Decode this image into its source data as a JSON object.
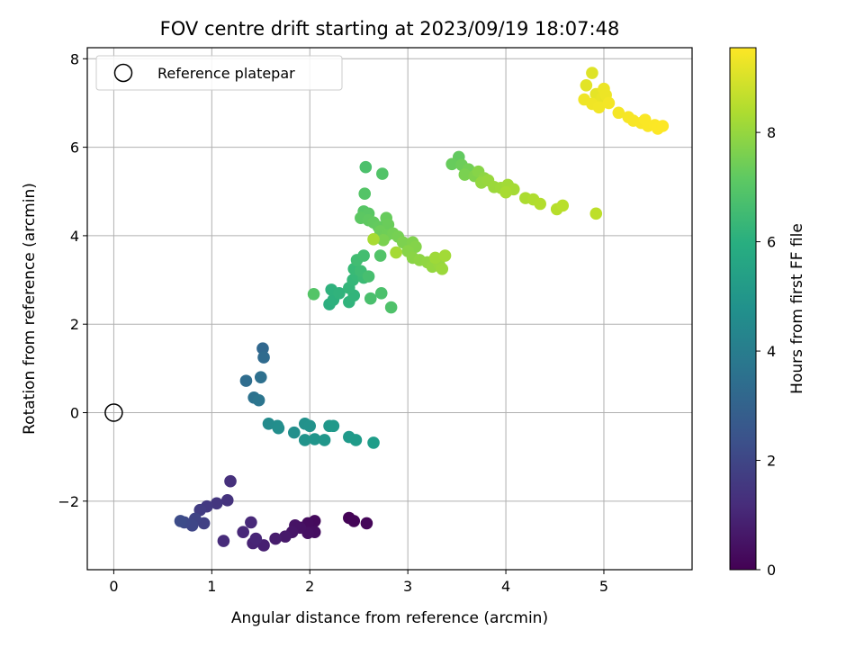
{
  "chart_data": {
    "type": "scatter",
    "title": "FOV centre drift starting at 2023/09/19 18:07:48",
    "xlabel": "Angular distance from reference (arcmin)",
    "ylabel": "Rotation from reference (arcmin)",
    "xlim": [
      -0.27,
      5.9
    ],
    "ylim": [
      -3.55,
      8.25
    ],
    "xticks": [
      0,
      1,
      2,
      3,
      4,
      5
    ],
    "yticks": [
      -2,
      0,
      2,
      4,
      6,
      8
    ],
    "grid": true,
    "legend": {
      "placement": "top-left",
      "entries": [
        "Reference platepar"
      ]
    },
    "reference_point": {
      "x": 0,
      "y": 0
    },
    "colorbar": {
      "label": "Hours from first FF file",
      "colormap": "viridis",
      "range": [
        0,
        9.55
      ],
      "ticks": [
        0,
        2,
        4,
        6,
        8
      ]
    },
    "points": [
      {
        "x": 2.4,
        "y": -2.38,
        "c": 0.05
      },
      {
        "x": 2.45,
        "y": -2.45,
        "c": 0.1
      },
      {
        "x": 2.58,
        "y": -2.5,
        "c": 0.15
      },
      {
        "x": 2.05,
        "y": -2.45,
        "c": 0.25
      },
      {
        "x": 1.98,
        "y": -2.5,
        "c": 0.3
      },
      {
        "x": 2.05,
        "y": -2.7,
        "c": 0.35
      },
      {
        "x": 1.98,
        "y": -2.72,
        "c": 0.4
      },
      {
        "x": 1.9,
        "y": -2.6,
        "c": 0.45
      },
      {
        "x": 1.85,
        "y": -2.55,
        "c": 0.5
      },
      {
        "x": 1.82,
        "y": -2.7,
        "c": 0.55
      },
      {
        "x": 1.75,
        "y": -2.8,
        "c": 0.65
      },
      {
        "x": 1.65,
        "y": -2.85,
        "c": 0.75
      },
      {
        "x": 1.53,
        "y": -3.0,
        "c": 0.85
      },
      {
        "x": 1.42,
        "y": -2.95,
        "c": 0.95
      },
      {
        "x": 1.45,
        "y": -2.85,
        "c": 1.0
      },
      {
        "x": 1.32,
        "y": -2.7,
        "c": 1.05
      },
      {
        "x": 1.4,
        "y": -2.48,
        "c": 1.1
      },
      {
        "x": 1.12,
        "y": -2.9,
        "c": 1.2
      },
      {
        "x": 1.19,
        "y": -1.55,
        "c": 1.3
      },
      {
        "x": 1.16,
        "y": -1.98,
        "c": 1.4
      },
      {
        "x": 1.05,
        "y": -2.05,
        "c": 1.5
      },
      {
        "x": 0.95,
        "y": -2.12,
        "c": 1.6
      },
      {
        "x": 0.88,
        "y": -2.2,
        "c": 1.7
      },
      {
        "x": 0.92,
        "y": -2.5,
        "c": 1.8
      },
      {
        "x": 0.83,
        "y": -2.4,
        "c": 1.9
      },
      {
        "x": 0.8,
        "y": -2.55,
        "c": 2.0
      },
      {
        "x": 0.72,
        "y": -2.48,
        "c": 2.1
      },
      {
        "x": 0.68,
        "y": -2.45,
        "c": 2.2
      },
      {
        "x": 1.52,
        "y": 1.45,
        "c": 3.2
      },
      {
        "x": 1.53,
        "y": 1.25,
        "c": 3.3
      },
      {
        "x": 1.35,
        "y": 0.72,
        "c": 3.4
      },
      {
        "x": 1.5,
        "y": 0.8,
        "c": 3.5
      },
      {
        "x": 1.43,
        "y": 0.34,
        "c": 3.6
      },
      {
        "x": 1.48,
        "y": 0.28,
        "c": 3.7
      },
      {
        "x": 1.58,
        "y": -0.25,
        "c": 4.6
      },
      {
        "x": 1.67,
        "y": -0.3,
        "c": 4.65
      },
      {
        "x": 1.68,
        "y": -0.35,
        "c": 4.7
      },
      {
        "x": 1.84,
        "y": -0.45,
        "c": 4.75
      },
      {
        "x": 1.95,
        "y": -0.25,
        "c": 4.8
      },
      {
        "x": 2.0,
        "y": -0.3,
        "c": 4.85
      },
      {
        "x": 1.95,
        "y": -0.62,
        "c": 4.9
      },
      {
        "x": 2.05,
        "y": -0.6,
        "c": 4.95
      },
      {
        "x": 2.15,
        "y": -0.62,
        "c": 5.0
      },
      {
        "x": 2.2,
        "y": -0.3,
        "c": 5.05
      },
      {
        "x": 2.24,
        "y": -0.3,
        "c": 5.1
      },
      {
        "x": 2.4,
        "y": -0.55,
        "c": 5.15
      },
      {
        "x": 2.47,
        "y": -0.62,
        "c": 5.2
      },
      {
        "x": 2.65,
        "y": -0.68,
        "c": 5.25
      },
      {
        "x": 2.2,
        "y": 2.45,
        "c": 6.0
      },
      {
        "x": 2.24,
        "y": 2.55,
        "c": 6.05
      },
      {
        "x": 2.22,
        "y": 2.78,
        "c": 6.1
      },
      {
        "x": 2.3,
        "y": 2.7,
        "c": 6.15
      },
      {
        "x": 2.4,
        "y": 2.5,
        "c": 6.2
      },
      {
        "x": 2.45,
        "y": 2.65,
        "c": 6.25
      },
      {
        "x": 2.4,
        "y": 2.82,
        "c": 6.3
      },
      {
        "x": 2.44,
        "y": 3.0,
        "c": 6.35
      },
      {
        "x": 2.48,
        "y": 3.1,
        "c": 6.4
      },
      {
        "x": 2.45,
        "y": 3.25,
        "c": 6.45
      },
      {
        "x": 2.55,
        "y": 3.05,
        "c": 6.5
      },
      {
        "x": 2.52,
        "y": 3.2,
        "c": 6.55
      },
      {
        "x": 2.48,
        "y": 3.45,
        "c": 6.6
      },
      {
        "x": 2.55,
        "y": 3.55,
        "c": 6.65
      },
      {
        "x": 2.6,
        "y": 3.08,
        "c": 6.7
      },
      {
        "x": 2.62,
        "y": 2.58,
        "c": 6.75
      },
      {
        "x": 2.73,
        "y": 2.7,
        "c": 6.8
      },
      {
        "x": 2.83,
        "y": 2.38,
        "c": 6.85
      },
      {
        "x": 2.72,
        "y": 3.55,
        "c": 6.9
      },
      {
        "x": 2.04,
        "y": 2.68,
        "c": 6.95
      },
      {
        "x": 2.57,
        "y": 5.55,
        "c": 6.8
      },
      {
        "x": 2.74,
        "y": 5.4,
        "c": 6.9
      },
      {
        "x": 2.56,
        "y": 4.95,
        "c": 6.95
      },
      {
        "x": 2.55,
        "y": 4.55,
        "c": 7.0
      },
      {
        "x": 2.6,
        "y": 4.5,
        "c": 7.05
      },
      {
        "x": 2.52,
        "y": 4.4,
        "c": 7.1
      },
      {
        "x": 2.6,
        "y": 4.35,
        "c": 7.15
      },
      {
        "x": 2.65,
        "y": 4.3,
        "c": 7.2
      },
      {
        "x": 2.7,
        "y": 4.2,
        "c": 7.25
      },
      {
        "x": 2.78,
        "y": 4.4,
        "c": 7.3
      },
      {
        "x": 2.8,
        "y": 4.25,
        "c": 7.35
      },
      {
        "x": 2.72,
        "y": 4.1,
        "c": 7.4
      },
      {
        "x": 2.78,
        "y": 4.0,
        "c": 7.45
      },
      {
        "x": 2.85,
        "y": 4.05,
        "c": 7.5
      },
      {
        "x": 2.9,
        "y": 3.98,
        "c": 7.55
      },
      {
        "x": 2.75,
        "y": 3.9,
        "c": 7.6
      },
      {
        "x": 2.95,
        "y": 3.85,
        "c": 7.65
      },
      {
        "x": 3.05,
        "y": 3.85,
        "c": 7.7
      },
      {
        "x": 3.08,
        "y": 3.75,
        "c": 7.75
      },
      {
        "x": 3.0,
        "y": 3.65,
        "c": 7.8
      },
      {
        "x": 3.05,
        "y": 3.5,
        "c": 7.85
      },
      {
        "x": 3.12,
        "y": 3.45,
        "c": 7.9
      },
      {
        "x": 3.2,
        "y": 3.4,
        "c": 7.95
      },
      {
        "x": 3.25,
        "y": 3.3,
        "c": 8.0
      },
      {
        "x": 3.32,
        "y": 3.35,
        "c": 8.05
      },
      {
        "x": 3.35,
        "y": 3.25,
        "c": 8.1
      },
      {
        "x": 3.28,
        "y": 3.5,
        "c": 8.15
      },
      {
        "x": 3.38,
        "y": 3.55,
        "c": 8.2
      },
      {
        "x": 2.88,
        "y": 3.62,
        "c": 8.25
      },
      {
        "x": 2.65,
        "y": 3.92,
        "c": 8.3
      },
      {
        "x": 3.52,
        "y": 5.78,
        "c": 7.2
      },
      {
        "x": 3.45,
        "y": 5.62,
        "c": 7.3
      },
      {
        "x": 3.55,
        "y": 5.6,
        "c": 7.4
      },
      {
        "x": 3.62,
        "y": 5.5,
        "c": 7.5
      },
      {
        "x": 3.58,
        "y": 5.38,
        "c": 7.6
      },
      {
        "x": 3.68,
        "y": 5.35,
        "c": 7.7
      },
      {
        "x": 3.72,
        "y": 5.45,
        "c": 7.8
      },
      {
        "x": 3.78,
        "y": 5.3,
        "c": 7.9
      },
      {
        "x": 3.75,
        "y": 5.2,
        "c": 8.0
      },
      {
        "x": 3.82,
        "y": 5.25,
        "c": 8.05
      },
      {
        "x": 3.88,
        "y": 5.1,
        "c": 8.1
      },
      {
        "x": 3.95,
        "y": 5.08,
        "c": 8.15
      },
      {
        "x": 4.02,
        "y": 5.15,
        "c": 8.2
      },
      {
        "x": 4.08,
        "y": 5.05,
        "c": 8.25
      },
      {
        "x": 4.0,
        "y": 4.98,
        "c": 8.3
      },
      {
        "x": 4.2,
        "y": 4.85,
        "c": 8.35
      },
      {
        "x": 4.28,
        "y": 4.82,
        "c": 8.4
      },
      {
        "x": 4.35,
        "y": 4.72,
        "c": 8.45
      },
      {
        "x": 4.52,
        "y": 4.6,
        "c": 8.5
      },
      {
        "x": 4.58,
        "y": 4.68,
        "c": 8.55
      },
      {
        "x": 4.92,
        "y": 4.5,
        "c": 8.6
      },
      {
        "x": 4.88,
        "y": 7.68,
        "c": 9.1
      },
      {
        "x": 4.82,
        "y": 7.4,
        "c": 9.15
      },
      {
        "x": 4.92,
        "y": 7.2,
        "c": 9.2
      },
      {
        "x": 4.98,
        "y": 7.1,
        "c": 9.25
      },
      {
        "x": 5.0,
        "y": 7.32,
        "c": 9.3
      },
      {
        "x": 5.02,
        "y": 7.18,
        "c": 9.32
      },
      {
        "x": 4.8,
        "y": 7.08,
        "c": 9.34
      },
      {
        "x": 4.88,
        "y": 6.98,
        "c": 9.36
      },
      {
        "x": 4.95,
        "y": 6.9,
        "c": 9.38
      },
      {
        "x": 5.05,
        "y": 7.0,
        "c": 9.4
      },
      {
        "x": 5.15,
        "y": 6.78,
        "c": 9.42
      },
      {
        "x": 5.25,
        "y": 6.68,
        "c": 9.44
      },
      {
        "x": 5.3,
        "y": 6.6,
        "c": 9.46
      },
      {
        "x": 5.38,
        "y": 6.55,
        "c": 9.48
      },
      {
        "x": 5.42,
        "y": 6.62,
        "c": 9.5
      },
      {
        "x": 5.45,
        "y": 6.48,
        "c": 9.51
      },
      {
        "x": 5.52,
        "y": 6.5,
        "c": 9.52
      },
      {
        "x": 5.55,
        "y": 6.42,
        "c": 9.53
      },
      {
        "x": 5.6,
        "y": 6.48,
        "c": 9.54
      }
    ]
  }
}
